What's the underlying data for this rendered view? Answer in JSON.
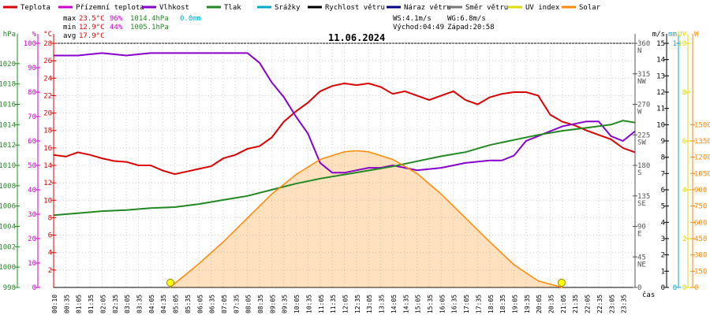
{
  "chart_data": {
    "type": "line",
    "title": "11.06.2024",
    "legend": [
      {
        "label": "Teplota",
        "color": "#dd0000"
      },
      {
        "label": "Přízemní teplota",
        "color": "#cc00cc"
      },
      {
        "label": "Vlhkost",
        "color": "#8800cc"
      },
      {
        "label": "Tlak",
        "color": "#228822"
      },
      {
        "label": "Srážky",
        "color": "#00aacc"
      },
      {
        "label": "Rychlost větru",
        "color": "#000000"
      },
      {
        "label": "Náraz větru",
        "color": "#000088"
      },
      {
        "label": "Směr větru",
        "color": "#777777"
      },
      {
        "label": "UV index",
        "color": "#dddd00"
      },
      {
        "label": "Solar",
        "color": "#ff8800"
      }
    ],
    "stats": {
      "max": {
        "label": "max",
        "temp": "23.5°C",
        "hum": "96%",
        "press": "1014.4hPa",
        "rain": "0.0mm"
      },
      "min": {
        "label": "min",
        "temp": "12.9°C",
        "hum": "44%",
        "press": "1005.1hPa"
      },
      "avg": {
        "label": "avg",
        "temp": "17.9°C"
      },
      "ws": "WS:4.1m/s",
      "wg": "WG:6.8m/s",
      "sunrise": "Východ:04:49",
      "sunset": "Západ:20:58"
    },
    "axes": {
      "hpa": {
        "unit": "hPa",
        "ticks": [
          998,
          1000,
          1002,
          1004,
          1006,
          1008,
          1010,
          1012,
          1014,
          1016,
          1018,
          1020
        ],
        "range": [
          998,
          1022
        ],
        "color": "#228822"
      },
      "pct": {
        "unit": "%",
        "ticks": [
          0,
          10,
          20,
          30,
          40,
          50,
          60,
          70,
          80,
          90,
          100
        ],
        "range": [
          0,
          100
        ],
        "color": "#cc00cc"
      },
      "temp": {
        "unit": "°C",
        "ticks": [
          2,
          4,
          6,
          8,
          10,
          12,
          14,
          16,
          18,
          20,
          22,
          24,
          26,
          28
        ],
        "range": [
          0,
          28
        ],
        "color": "#dd0000"
      },
      "deg": {
        "ticks": [
          0,
          45,
          90,
          135,
          180,
          225,
          270,
          315,
          360
        ],
        "range": [
          0,
          360
        ],
        "color": "#555555",
        "dirs": {
          "45": "NE",
          "90": "E",
          "135": "SE",
          "180": "S",
          "225": "SW",
          "270": "W",
          "315": "NW",
          "360": "N"
        }
      },
      "ms": {
        "unit": "m/s",
        "ticks": [
          0,
          1,
          2,
          3,
          4,
          5,
          6,
          7,
          8,
          9,
          10,
          11,
          12,
          13,
          14,
          15
        ],
        "range": [
          0,
          15
        ],
        "color": "#000000"
      },
      "mm": {
        "unit": "mm",
        "ticks": [
          0,
          1
        ],
        "range": [
          0,
          1
        ],
        "color": "#00aacc"
      },
      "uv": {
        "unit": "UV",
        "ticks": [
          0,
          2,
          4,
          6,
          8,
          10
        ],
        "range": [
          0,
          10
        ],
        "color": "#dddd00"
      },
      "w": {
        "unit": "W",
        "ticks": [
          0,
          150,
          300,
          450,
          600,
          750,
          900,
          1050,
          1200,
          1350,
          1500
        ],
        "range": [
          0,
          2250
        ],
        "color": "#ff8800"
      },
      "time": {
        "label": "čas",
        "ticks": [
          "00:10",
          "00:35",
          "01:05",
          "01:35",
          "02:05",
          "02:35",
          "03:05",
          "03:35",
          "04:05",
          "04:35",
          "05:05",
          "05:35",
          "06:05",
          "06:35",
          "07:05",
          "07:35",
          "08:05",
          "08:35",
          "09:05",
          "09:35",
          "10:05",
          "10:35",
          "11:05",
          "11:35",
          "12:05",
          "12:35",
          "13:05",
          "13:35",
          "14:05",
          "14:35",
          "15:05",
          "15:35",
          "16:05",
          "16:35",
          "17:05",
          "17:35",
          "18:05",
          "18:35",
          "19:05",
          "19:35",
          "20:05",
          "20:35",
          "21:05",
          "21:35",
          "22:05",
          "22:35",
          "23:05",
          "23:35"
        ]
      }
    },
    "sun_marks": [
      4.82,
      20.97
    ],
    "series": [
      {
        "name": "Teplota",
        "axis": "temp",
        "color": "#dd0000",
        "x": [
          0,
          0.5,
          1,
          1.5,
          2,
          2.5,
          3,
          3.5,
          4,
          4.5,
          5,
          5.5,
          6,
          6.5,
          7,
          7.5,
          8,
          8.5,
          9,
          9.5,
          10,
          10.5,
          11,
          11.5,
          12,
          12.5,
          13,
          13.5,
          14,
          14.5,
          15,
          15.5,
          16,
          16.5,
          17,
          17.5,
          18,
          18.5,
          19,
          19.5,
          20,
          20.5,
          21,
          21.5,
          22,
          22.5,
          23,
          23.5,
          24
        ],
        "y": [
          15.2,
          15.0,
          15.5,
          15.2,
          14.8,
          14.5,
          14.4,
          14.0,
          14.0,
          13.4,
          13.0,
          13.3,
          13.6,
          13.9,
          14.8,
          15.2,
          15.9,
          16.2,
          17.2,
          19.0,
          20.2,
          21.2,
          22.5,
          23.1,
          23.4,
          23.2,
          23.4,
          23.0,
          22.2,
          22.5,
          22.0,
          21.5,
          22.0,
          22.5,
          21.5,
          21.0,
          21.8,
          22.2,
          22.4,
          22.4,
          22.0,
          19.8,
          19.0,
          18.6,
          18.0,
          17.5,
          17.0,
          16.0,
          15.5
        ]
      },
      {
        "name": "Vlhkost",
        "axis": "pct",
        "color": "#8800cc",
        "x": [
          0,
          1,
          2,
          3,
          4,
          5,
          6,
          7,
          8,
          8.5,
          9,
          9.5,
          10,
          10.5,
          11,
          11.5,
          12,
          12.5,
          13,
          13.5,
          14,
          15,
          16,
          17,
          18,
          18.5,
          19,
          19.5,
          20,
          20.5,
          21,
          22,
          22.5,
          23,
          23.5,
          24
        ],
        "y": [
          95,
          95,
          96,
          95,
          96,
          96,
          96,
          96,
          96,
          92,
          84,
          78,
          70,
          63,
          51,
          47,
          47,
          48,
          49,
          49,
          50,
          48,
          49,
          51,
          52,
          52,
          54,
          60,
          62,
          64,
          66,
          68,
          68,
          62,
          60,
          64
        ]
      },
      {
        "name": "Tlak",
        "axis": "hpa",
        "color": "#228822",
        "x": [
          0,
          1,
          2,
          3,
          4,
          5,
          6,
          7,
          8,
          9,
          10,
          11,
          12,
          13,
          14,
          15,
          16,
          17,
          18,
          19,
          20,
          21,
          22,
          23,
          23.5,
          24
        ],
        "y": [
          1005.1,
          1005.3,
          1005.5,
          1005.6,
          1005.8,
          1005.9,
          1006.2,
          1006.6,
          1007.0,
          1007.6,
          1008.2,
          1008.7,
          1009.1,
          1009.5,
          1009.9,
          1010.4,
          1010.9,
          1011.3,
          1012.0,
          1012.5,
          1013.0,
          1013.4,
          1013.7,
          1014.0,
          1014.4,
          1014.2
        ]
      },
      {
        "name": "Solar",
        "axis": "w",
        "color": "#ff8800",
        "x": [
          4.8,
          6,
          7,
          8,
          9,
          10,
          11,
          12,
          12.5,
          13,
          14,
          15,
          16,
          17,
          18,
          19,
          20,
          21
        ],
        "y": [
          0,
          220,
          420,
          640,
          860,
          1040,
          1180,
          1250,
          1260,
          1250,
          1180,
          1050,
          860,
          640,
          420,
          210,
          60,
          0
        ]
      }
    ]
  }
}
